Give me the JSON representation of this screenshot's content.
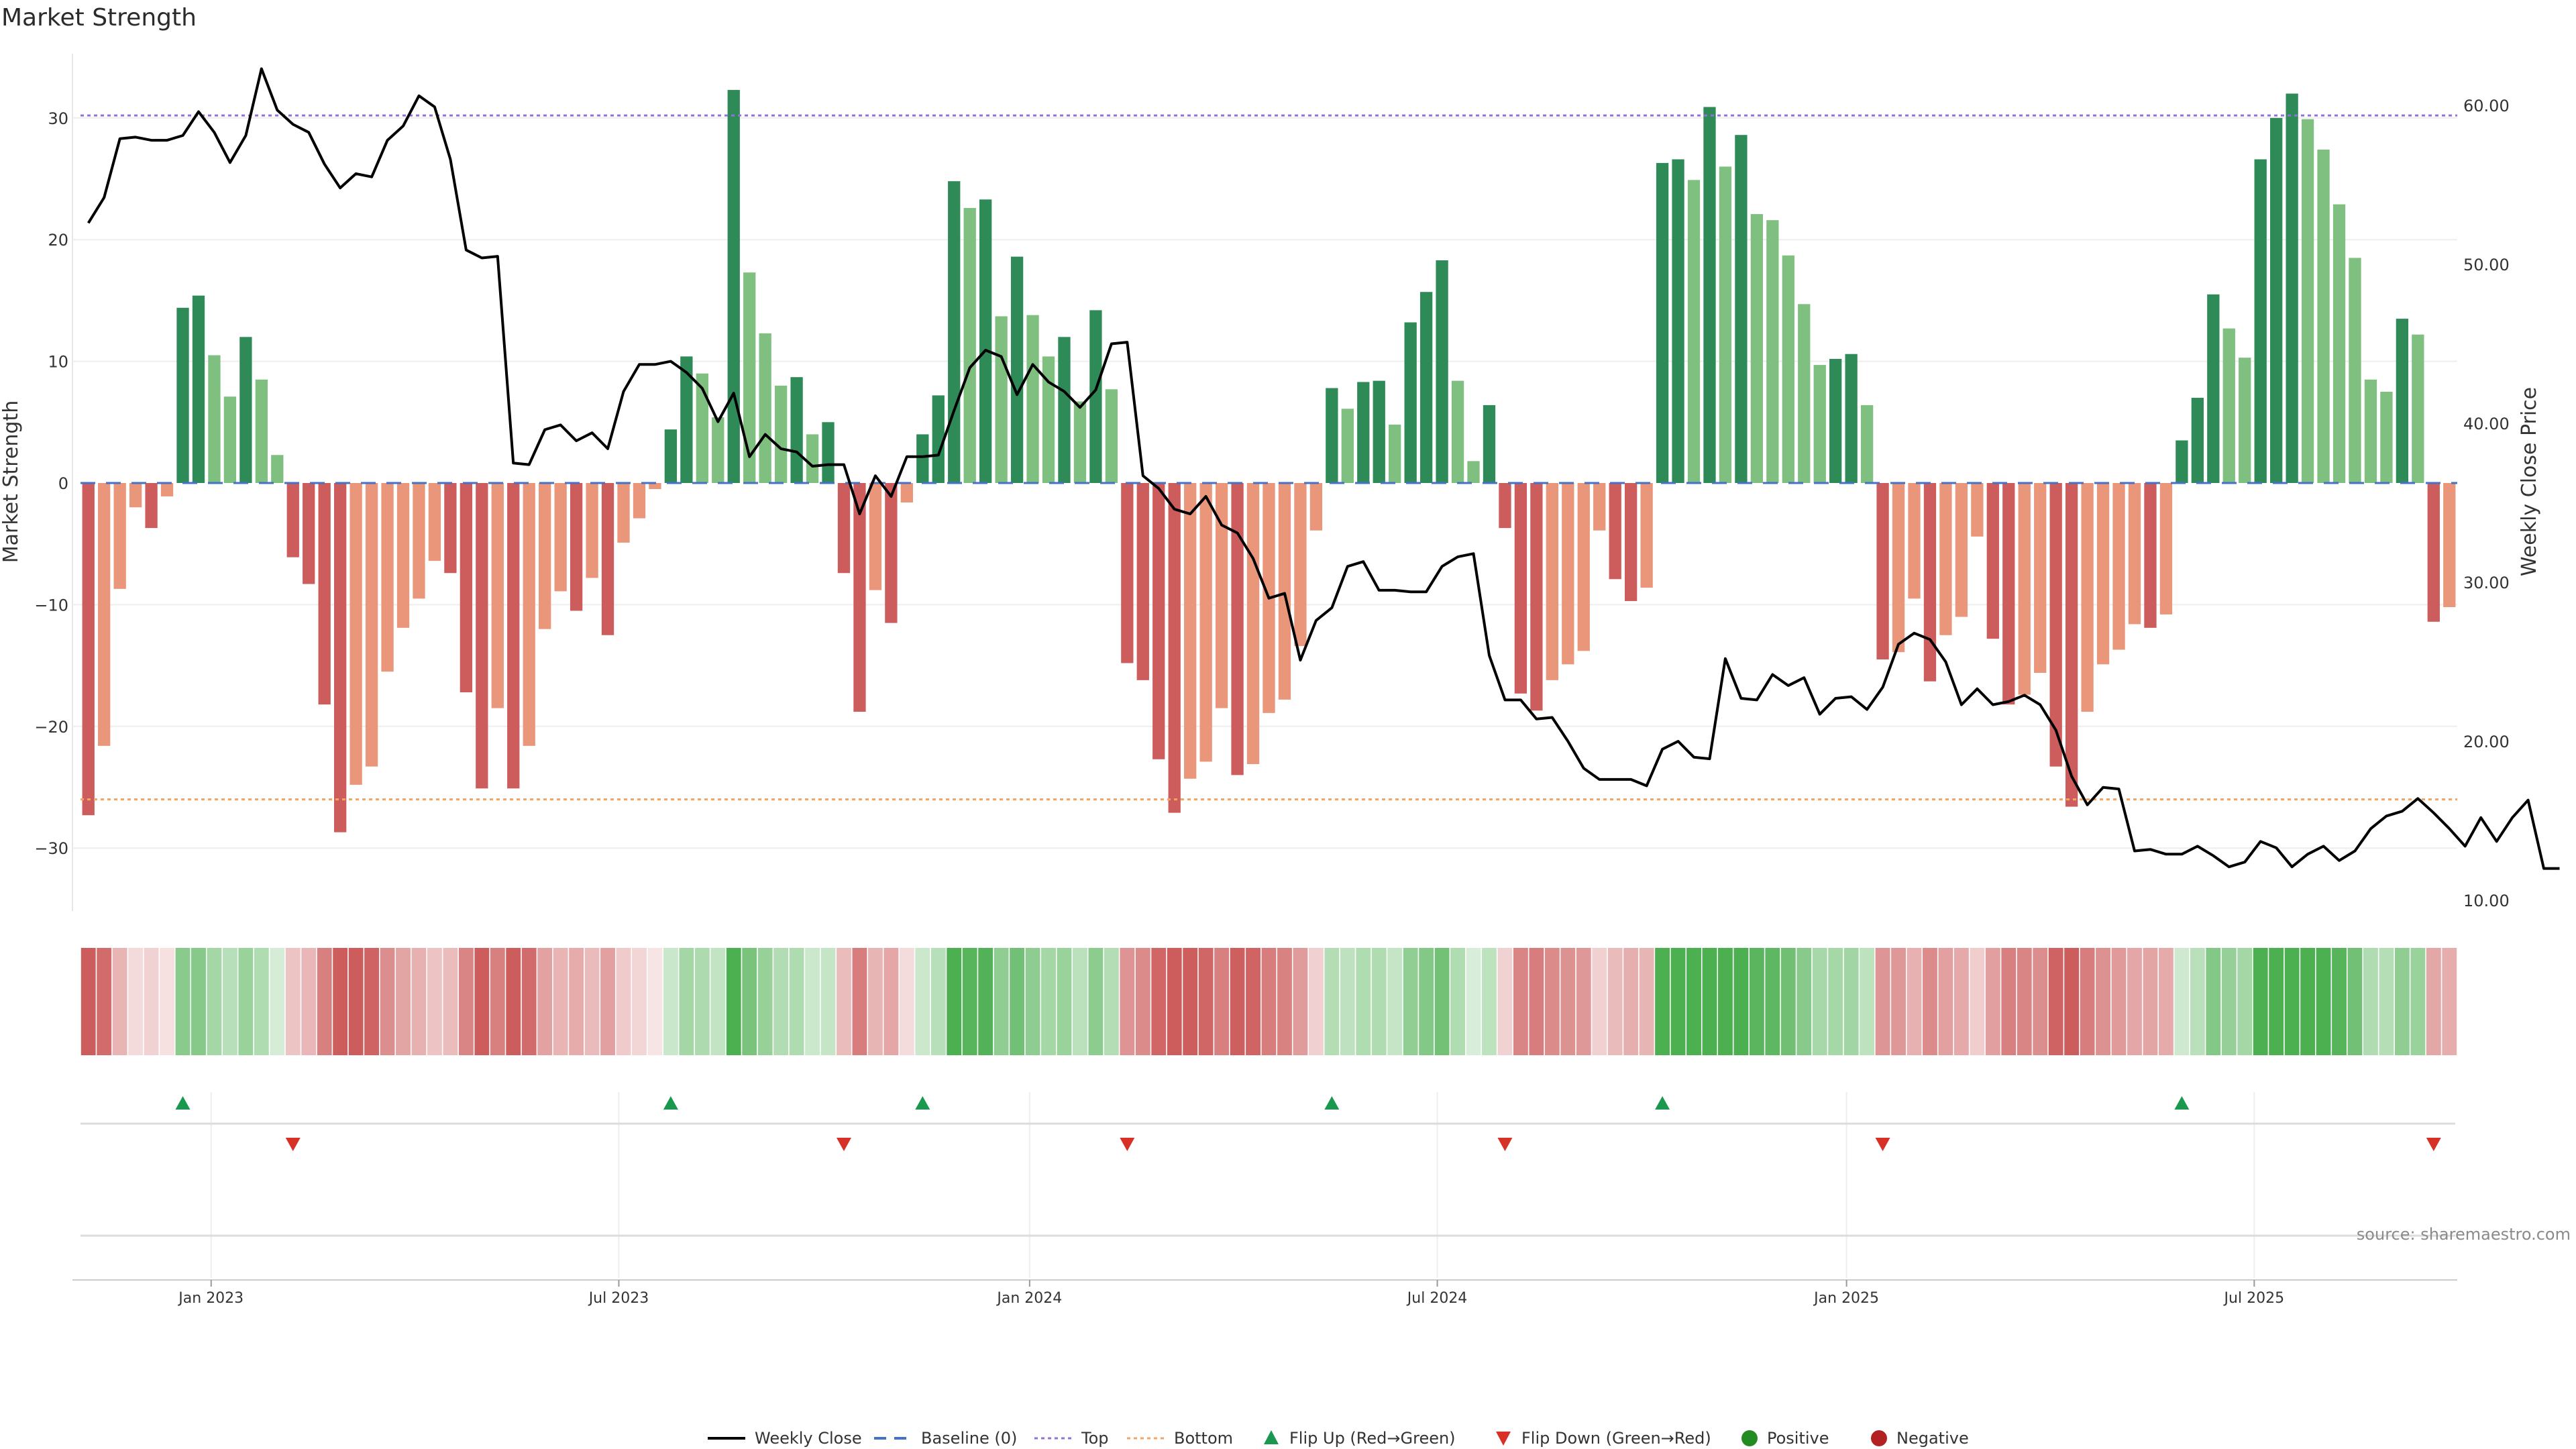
{
  "chart_data": {
    "type": "bar",
    "title": "Market Strength",
    "ylabel": "Market Strength",
    "y2label": "Weekly Close Price",
    "ylim": [
      -35,
      35
    ],
    "y2lim": [
      10,
      62
    ],
    "yticks": [
      30,
      20,
      10,
      0,
      -10,
      -20,
      -30
    ],
    "ytick_labels": [
      "30",
      "20",
      "10",
      "0",
      "−10",
      "−20",
      "−30"
    ],
    "y2ticks": [
      60,
      50,
      40,
      30,
      20,
      10
    ],
    "y2tick_labels": [
      "60.00",
      "50.00",
      "40.00",
      "30.00",
      "20.00",
      "10.00"
    ],
    "top_level": 30.2,
    "bottom_level": -26,
    "date_labels": [
      "Jan 2023",
      "Jul 2023",
      "Jan 2024",
      "Jul 2024",
      "Jan 2025",
      "Jul 2025"
    ],
    "date_label_week": [
      7.8,
      33.7,
      59.8,
      85.7,
      111.7,
      137.6
    ],
    "strength": [
      -27.3,
      -21.6,
      -8.7,
      -2,
      -3.7,
      -1.1,
      14.4,
      15.4,
      10.5,
      7.1,
      12,
      8.5,
      2.3,
      -6.1,
      -8.3,
      -18.2,
      -28.7,
      -24.8,
      -23.3,
      -15.5,
      -11.9,
      -9.5,
      -6.4,
      -7.4,
      -17.2,
      -25.1,
      -18.5,
      -25.1,
      -21.6,
      -12,
      -8.9,
      -10.5,
      -7.8,
      -12.5,
      -4.9,
      -2.9,
      -0.5,
      4.4,
      10.4,
      9,
      5.4,
      32.3,
      17.3,
      12.3,
      8,
      8.7,
      4,
      5,
      -7.4,
      -18.8,
      -8.8,
      -11.5,
      -1.6,
      4,
      7.2,
      24.8,
      22.6,
      23.3,
      13.7,
      18.6,
      13.8,
      10.4,
      12,
      6.7,
      14.2,
      7.7,
      -14.8,
      -16.2,
      -22.7,
      -27.1,
      -24.3,
      -22.9,
      -18.5,
      -24,
      -23.1,
      -18.9,
      -17.8,
      -13.4,
      -3.9,
      7.8,
      6.1,
      8.3,
      8.4,
      4.8,
      13.2,
      15.7,
      18.3,
      8.4,
      1.8,
      6.4,
      -3.7,
      -17.3,
      -18.7,
      -16.2,
      -14.9,
      -13.8,
      -3.9,
      -7.9,
      -9.7,
      -8.6,
      26.3,
      26.6,
      24.9,
      30.9,
      26,
      28.6,
      22.1,
      21.6,
      18.7,
      14.7,
      9.7,
      10.2,
      10.6,
      6.4,
      -14.5,
      -13.9,
      -9.5,
      -16.3,
      -12.5,
      -11,
      -4.4,
      -12.8,
      -18.2,
      -17.4,
      -15.6,
      -23.3,
      -26.6,
      -18.8,
      -14.9,
      -13.7,
      -11.6,
      -11.9,
      -10.8,
      3.5,
      7,
      15.5,
      12.7,
      10.3,
      26.6,
      30,
      32,
      29.9,
      27.4,
      22.9,
      18.5,
      8.5,
      7.5,
      13.5,
      12.2,
      -11.4,
      -10.2
    ],
    "close": [
      52.6,
      54.2,
      57.9,
      58,
      57.8,
      57.8,
      58.1,
      59.6,
      58.3,
      56.4,
      58.1,
      62.3,
      59.7,
      58.8,
      58.3,
      56.3,
      54.8,
      55.7,
      55.5,
      57.8,
      58.7,
      60.6,
      59.9,
      56.6,
      50.9,
      50.4,
      50.5,
      37.5,
      37.4,
      39.6,
      39.9,
      38.9,
      39.4,
      38.4,
      42,
      43.7,
      43.7,
      43.9,
      43.2,
      42.2,
      40.1,
      41.9,
      37.9,
      39.3,
      38.4,
      38.2,
      37.3,
      37.4,
      37.4,
      34.3,
      36.7,
      35.4,
      37.9,
      37.9,
      38,
      40.8,
      43.5,
      44.6,
      44.2,
      41.8,
      43.7,
      42.6,
      42,
      41,
      42.1,
      45,
      45.1,
      36.7,
      35.9,
      34.6,
      34.3,
      35.4,
      33.6,
      33.1,
      31.5,
      29,
      29.3,
      25.1,
      27.6,
      28.4,
      31,
      31.3,
      29.5,
      29.5,
      29.4,
      29.4,
      31,
      31.6,
      31.8,
      25.4,
      22.6,
      22.6,
      21.4,
      21.5,
      20,
      18.3,
      17.6,
      17.6,
      17.6,
      17.2,
      19.5,
      20,
      19,
      18.9,
      25.2,
      22.7,
      22.6,
      24.2,
      23.5,
      24,
      21.7,
      22.7,
      22.8,
      22,
      23.4,
      26.1,
      26.8,
      26.4,
      25,
      22.3,
      23.3,
      22.3,
      22.5,
      22.9,
      22.3,
      20.7,
      17.8,
      16,
      17.1,
      17,
      13.1,
      13.2,
      12.9,
      12.9,
      13.4,
      12.8,
      12.1,
      12.4,
      13.7,
      13.3,
      12.1,
      12.9,
      13.4,
      12.5,
      13.1,
      14.5,
      15.3,
      15.6,
      16.4,
      15.5,
      14.5,
      13.4,
      15.2,
      13.7,
      15.2,
      16.3,
      12,
      12
    ],
    "legend": [
      "Weekly Close",
      "Baseline (0)",
      "Top",
      "Bottom",
      "Flip Up (Red→Green)",
      "Flip Down (Green→Red)",
      "Positive",
      "Negative"
    ],
    "source": "source: sharemaestro.com",
    "colors": {
      "pos_dark": "#2e8b57",
      "pos_light": "#7fbf7f",
      "neg_dark": "#cd5c5c",
      "neg_light": "#e9967a",
      "line": "#000000",
      "baseline": "#4472c4",
      "top": "#9370db",
      "bottom": "#f4a460",
      "flip_up": "#1a9850",
      "flip_down": "#d73027",
      "positive": "#228b22",
      "negative": "#b22222"
    }
  }
}
